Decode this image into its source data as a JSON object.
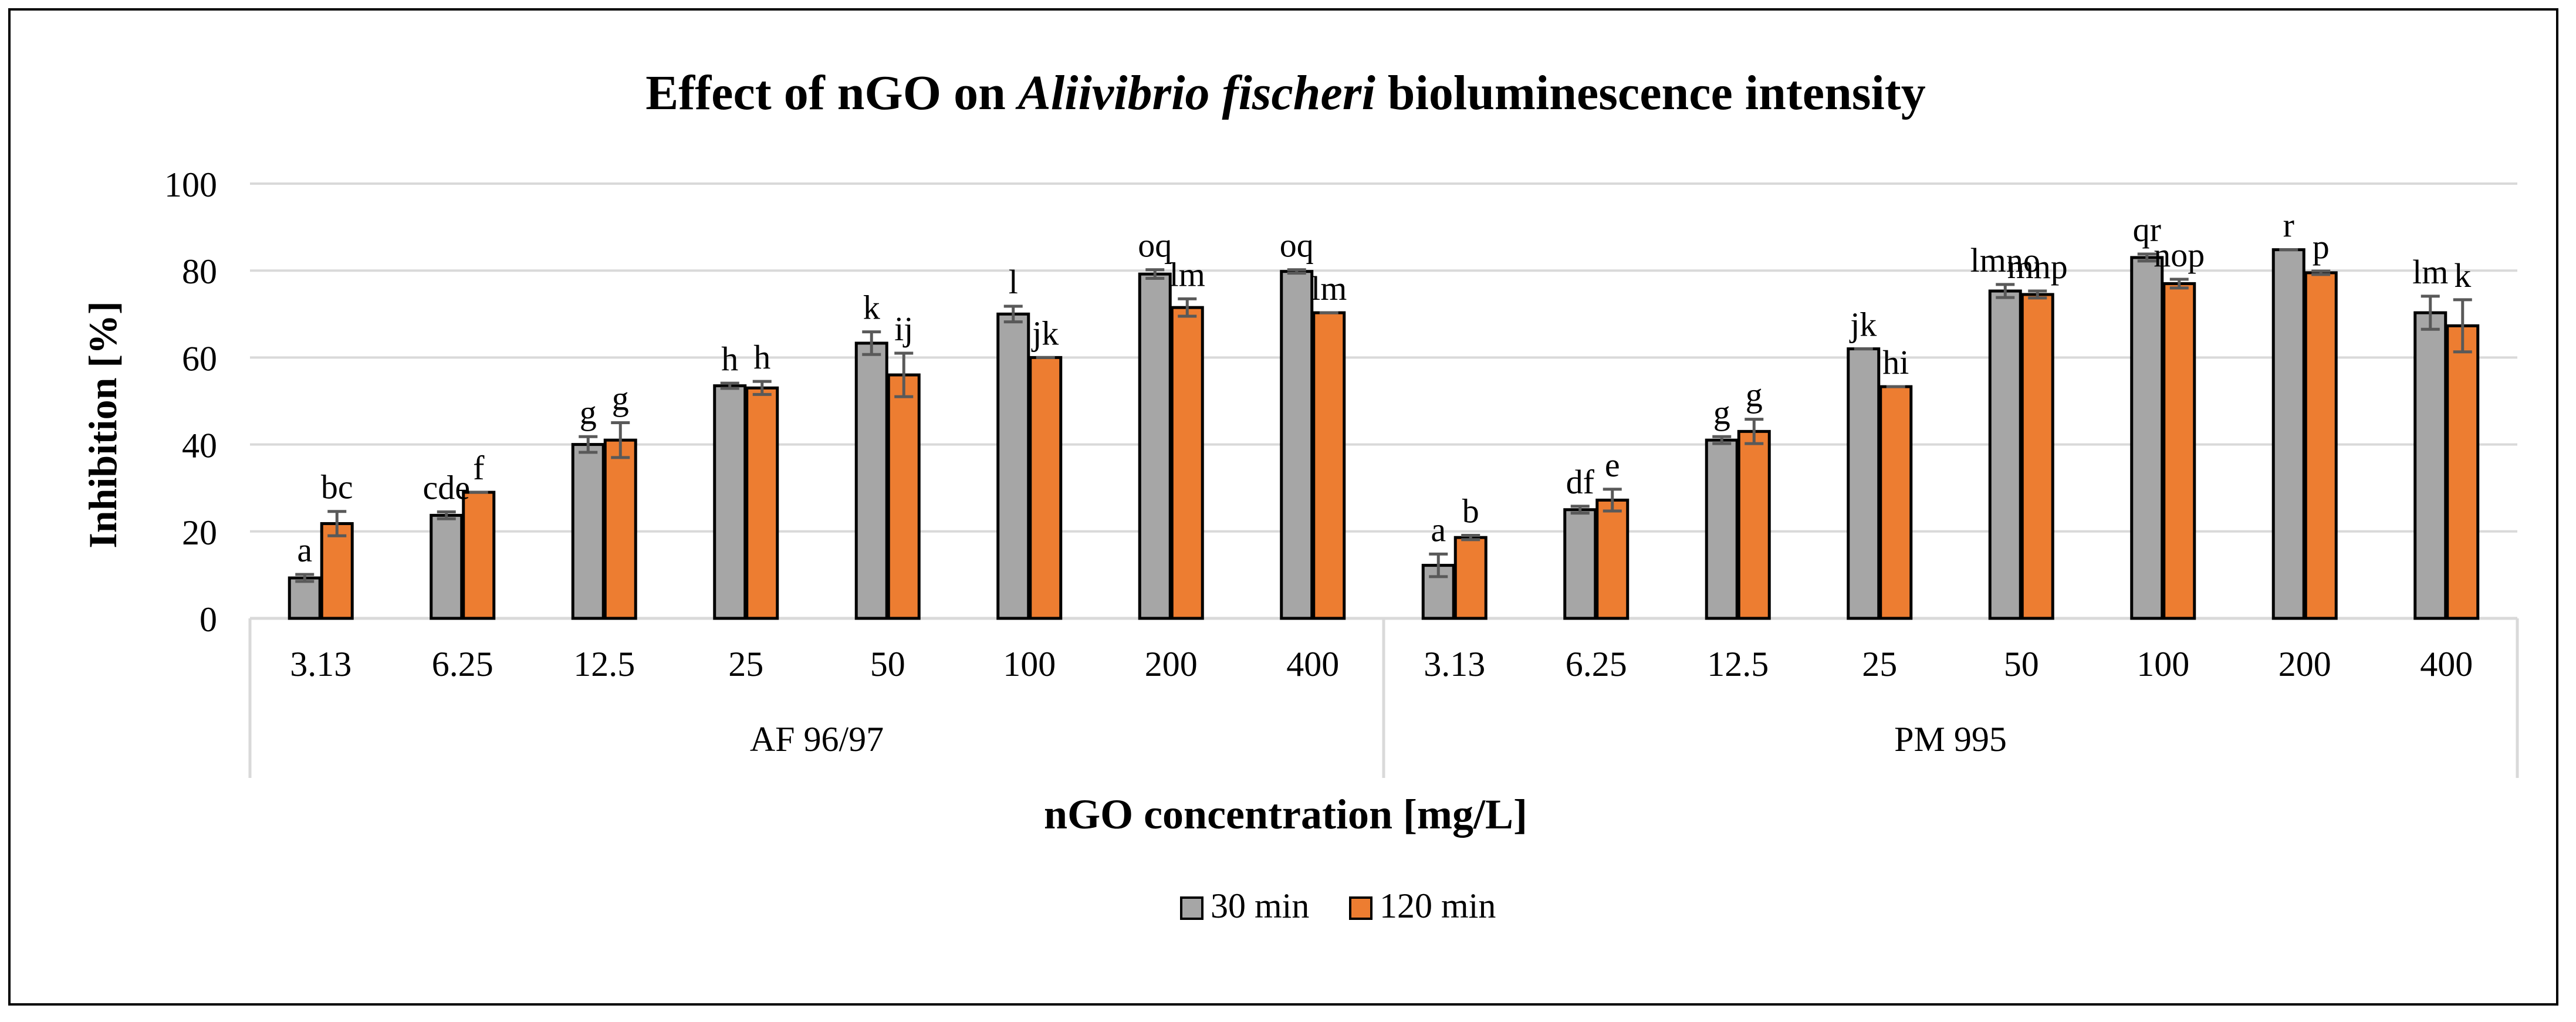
{
  "chart_data": {
    "type": "bar",
    "title_prefix": "Effect of nGO on ",
    "title_italic": "Aliivibrio fischeri",
    "title_suffix": " bioluminescence intensity",
    "xlabel": "nGO concentration [mg/L]",
    "ylabel": "Inhibition [%]",
    "ylim": [
      0,
      100
    ],
    "yticks": [
      0,
      20,
      40,
      60,
      80,
      100
    ],
    "grid": true,
    "legend_position": "bottom-center",
    "colors": {
      "30 min": "#A6A6A6",
      "120 min": "#ED7D31",
      "grid": "#D9D9D9",
      "error_bar": "#595959"
    },
    "groups": [
      {
        "name": "AF 96/97",
        "categories": [
          "3.13",
          "6.25",
          "12.5",
          "25",
          "50",
          "100",
          "200",
          "400"
        ],
        "series": [
          {
            "name": "30 min",
            "values": [
              9.3,
              23.7,
              40.0,
              53.5,
              63.3,
              70.0,
              79.2,
              79.8
            ],
            "errors": [
              0.8,
              0.8,
              1.8,
              0.6,
              2.6,
              1.8,
              1.0,
              0.4
            ],
            "labels": [
              "a",
              "cde",
              "g",
              "h",
              "k",
              "l",
              "oq",
              "oq"
            ]
          },
          {
            "name": "120 min",
            "values": [
              21.8,
              29.0,
              41.0,
              53.0,
              56.0,
              60.0,
              71.5,
              70.3
            ],
            "errors": [
              2.8,
              0.0,
              4.0,
              1.5,
              5.0,
              0.0,
              2.0,
              0.0
            ],
            "labels": [
              "bc",
              "f",
              "g",
              "h",
              "ij",
              "jk",
              "lm",
              "lm"
            ]
          }
        ]
      },
      {
        "name": "PM 995",
        "categories": [
          "3.13",
          "6.25",
          "12.5",
          "25",
          "50",
          "100",
          "200",
          "400"
        ],
        "series": [
          {
            "name": "30 min",
            "values": [
              12.2,
              25.0,
              41.0,
              62.0,
              75.3,
              83.0,
              84.8,
              70.3
            ],
            "errors": [
              2.6,
              0.8,
              0.8,
              0.0,
              1.5,
              0.8,
              0.0,
              3.8
            ],
            "labels": [
              "a",
              "df",
              "g",
              "jk",
              "lmno",
              "qr",
              "r",
              "lm"
            ]
          },
          {
            "name": "120 min",
            "values": [
              18.6,
              27.2,
              43.0,
              53.3,
              74.5,
              77.0,
              79.5,
              67.3
            ],
            "errors": [
              0.5,
              2.5,
              2.8,
              0.0,
              0.8,
              1.0,
              0.4,
              6.0
            ],
            "labels": [
              "b",
              "e",
              "g",
              "hi",
              "mnp",
              "nop",
              "p",
              "k"
            ]
          }
        ]
      }
    ]
  }
}
